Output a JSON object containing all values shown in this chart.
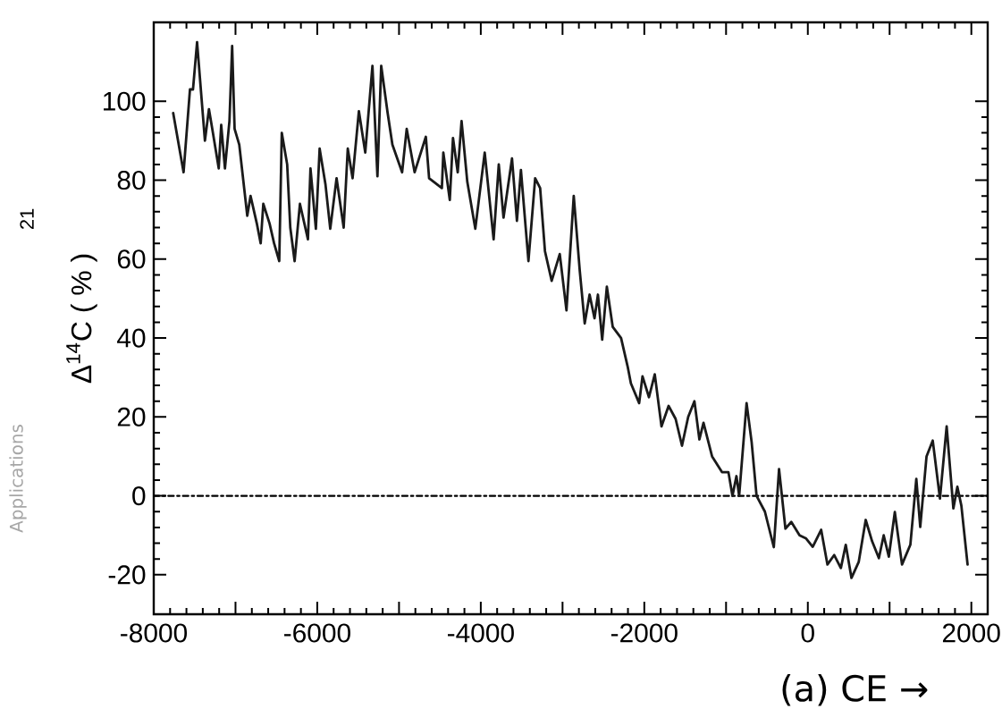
{
  "chart_data": {
    "type": "line",
    "xlabel": "(a) CE →",
    "ylabel": "Δ$^{14}$C ( % )",
    "annotations": [
      "21",
      "Applications"
    ],
    "color": "#1a1a1a",
    "marker": "none",
    "line_style": "solid",
    "xlim": [
      -8000,
      2200
    ],
    "ylim": [
      -30,
      120
    ],
    "xticks": [
      -8000,
      {
        "value": -7000,
        "label": null
      },
      -6000,
      {
        "value": -5000,
        "label": null
      },
      -4000,
      {
        "value": -3000,
        "label": null
      },
      -2000,
      {
        "value": -1000,
        "label": null
      },
      0,
      {
        "value": 1000,
        "label": null
      },
      2000
    ],
    "yticks": [
      -20,
      0,
      20,
      40,
      60,
      80,
      100
    ],
    "ref_lines": [
      {
        "axis": "y",
        "value": 0,
        "line_style": "dashdot"
      }
    ],
    "x": [
      -7762,
      -7635,
      -7557,
      -7520,
      -7470,
      -7374,
      -7325,
      -7284,
      -7205,
      -7175,
      -7129,
      -7074,
      -7041,
      -7011,
      -6954,
      -6856,
      -6816,
      -6739,
      -6692,
      -6660,
      -6583,
      -6528,
      -6465,
      -6434,
      -6368,
      -6330,
      -6277,
      -6212,
      -6114,
      -6083,
      -6017,
      -5971,
      -5900,
      -5841,
      -5764,
      -5677,
      -5627,
      -5568,
      -5491,
      -5413,
      -5325,
      -5264,
      -5218,
      -5139,
      -5081,
      -4962,
      -4906,
      -4809,
      -4672,
      -4632,
      -4476,
      -4458,
      -4379,
      -4340,
      -4282,
      -4235,
      -4165,
      -4067,
      -3952,
      -3843,
      -3780,
      -3722,
      -3618,
      -3558,
      -3509,
      -3417,
      -3335,
      -3274,
      -3215,
      -3133,
      -3034,
      -2952,
      -2863,
      -2789,
      -2729,
      -2669,
      -2609,
      -2567,
      -2515,
      -2458,
      -2386,
      -2284,
      -2204,
      -2164,
      -2063,
      -2022,
      -1943,
      -1872,
      -1790,
      -1703,
      -1617,
      -1539,
      -1463,
      -1387,
      -1326,
      -1276,
      -1171,
      -1050,
      -971,
      -922,
      -873,
      -840,
      -749,
      -687,
      -627,
      -525,
      -416,
      -352,
      -274,
      -202,
      -101,
      -21,
      60,
      163,
      240,
      323,
      404,
      464,
      534,
      623,
      708,
      786,
      869,
      928,
      991,
      1064,
      1152,
      1254,
      1327,
      1375,
      1452,
      1528,
      1616,
      1698,
      1780,
      1829,
      1878,
      1954
    ],
    "values": [
      97,
      82,
      103,
      103,
      115,
      90,
      98,
      93,
      83,
      94,
      83,
      95,
      114,
      93,
      89,
      71,
      76,
      69,
      64,
      74,
      69,
      64,
      59.5,
      92,
      84,
      68,
      59.5,
      74,
      65,
      83,
      67.7,
      88,
      79,
      67.7,
      80.5,
      68,
      88,
      80.5,
      97.5,
      87,
      109,
      81,
      109,
      97,
      89,
      82,
      93,
      82,
      91,
      80.5,
      78,
      87,
      75,
      90.7,
      82,
      95,
      79.6,
      67.7,
      87,
      65,
      84,
      70.5,
      85.5,
      69.7,
      82.6,
      59.5,
      80.5,
      78,
      62,
      54.5,
      61.3,
      47,
      76,
      57,
      43.7,
      51,
      45,
      51,
      39.6,
      53,
      42.8,
      40,
      32.8,
      28.5,
      23.5,
      30.3,
      25,
      30.8,
      17.6,
      22.8,
      19.5,
      12.7,
      20,
      24,
      14.3,
      18.5,
      10,
      6,
      6,
      0,
      5,
      0,
      23.5,
      13.6,
      0,
      -4,
      -13,
      6.8,
      -8.3,
      -6.6,
      -10,
      -10.8,
      -12.9,
      -8.6,
      -17.4,
      -15,
      -18.3,
      -12.4,
      -20.8,
      -16.7,
      -6.1,
      -11.5,
      -15.8,
      -10,
      -15.4,
      -4.1,
      -17.4,
      -12.4,
      4.3,
      -7.9,
      10,
      14,
      -0.7,
      17.6,
      -3.2,
      2.3,
      -2.5,
      -17.4
    ]
  }
}
